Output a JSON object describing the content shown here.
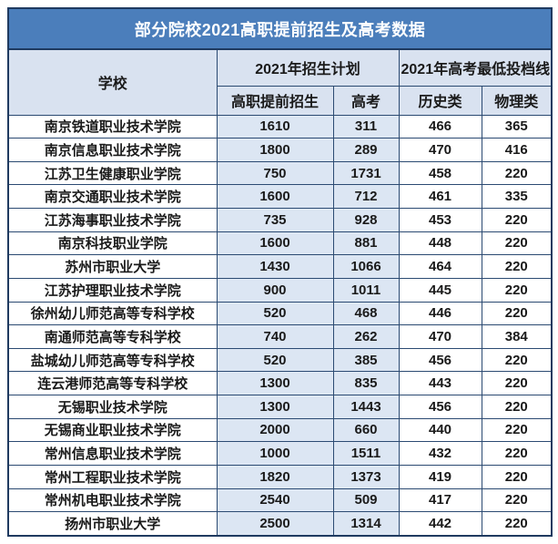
{
  "title": "部分院校2021高职提前招生及高考数据",
  "header": {
    "school": "学校",
    "plan_group": "2021年招生计划",
    "plan_early": "高职提前招生",
    "plan_gaokao": "高考",
    "line_group": "2021年高考最低投档线",
    "line_history": "历史类",
    "line_physics": "物理类"
  },
  "colors": {
    "title_bg": "#4B7EBB",
    "title_text": "#FFFFFF",
    "header_bg": "#D9E2F0",
    "highlight_column_bg": "#DCE6F3",
    "border": "#2B4A72",
    "body_text": "#1A1A1A"
  },
  "chart_data": {
    "type": "table",
    "title": "部分院校2021高职提前招生及高考数据",
    "column_groups": [
      {
        "label": "2021年招生计划",
        "columns": [
          "高职提前招生",
          "高考"
        ]
      },
      {
        "label": "2021年高考最低投档线",
        "columns": [
          "历史类",
          "物理类"
        ]
      }
    ],
    "columns": [
      "学校",
      "高职提前招生",
      "高考",
      "历史类",
      "物理类"
    ],
    "rows": [
      [
        "南京铁道职业技术学院",
        1610,
        311,
        466,
        365
      ],
      [
        "南京信息职业技术学院",
        1800,
        289,
        470,
        416
      ],
      [
        "江苏卫生健康职业学院",
        750,
        1731,
        458,
        220
      ],
      [
        "南京交通职业技术学院",
        1600,
        712,
        461,
        335
      ],
      [
        "江苏海事职业技术学院",
        735,
        928,
        453,
        220
      ],
      [
        "南京科技职业学院",
        1600,
        881,
        448,
        220
      ],
      [
        "苏州市职业大学",
        1430,
        1066,
        464,
        220
      ],
      [
        "江苏护理职业技术学院",
        900,
        1011,
        445,
        220
      ],
      [
        "徐州幼儿师范高等专科学校",
        520,
        468,
        446,
        220
      ],
      [
        "南通师范高等专科学校",
        740,
        262,
        470,
        384
      ],
      [
        "盐城幼儿师范高等专科学校",
        520,
        385,
        456,
        220
      ],
      [
        "连云港师范高等专科学校",
        1300,
        835,
        443,
        220
      ],
      [
        "无锡职业技术学院",
        1300,
        1443,
        456,
        220
      ],
      [
        "无锡商业职业技术学院",
        2000,
        660,
        440,
        220
      ],
      [
        "常州信息职业技术学院",
        1000,
        1511,
        432,
        220
      ],
      [
        "常州工程职业技术学院",
        1820,
        1373,
        419,
        220
      ],
      [
        "常州机电职业技术学院",
        2540,
        509,
        417,
        220
      ],
      [
        "扬州市职业大学",
        2500,
        1314,
        442,
        220
      ]
    ]
  }
}
